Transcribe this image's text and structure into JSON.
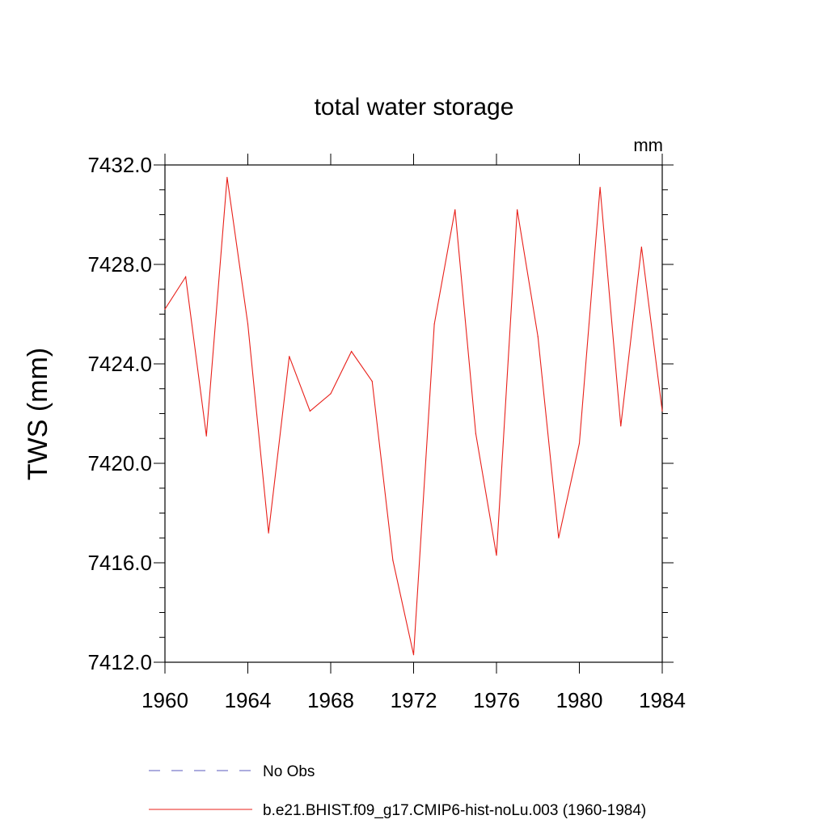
{
  "chart_data": {
    "type": "line",
    "title": "total water storage",
    "units": "mm",
    "xlabel": "",
    "ylabel": "TWS  (mm)",
    "xlim": [
      1960,
      1984
    ],
    "ylim": [
      7412,
      7432
    ],
    "x_ticks": [
      1960,
      1964,
      1968,
      1972,
      1976,
      1980,
      1984
    ],
    "x_tick_labels": [
      "1960",
      "1964",
      "1968",
      "1972",
      "1976",
      "1980",
      "1984"
    ],
    "y_ticks": [
      7412,
      7416,
      7420,
      7424,
      7428,
      7432
    ],
    "y_tick_labels": [
      "7412.0",
      "7416.0",
      "7420.0",
      "7424.0",
      "7428.0",
      "7432.0"
    ],
    "grid": false,
    "legend_position": "bottom",
    "legend": [
      {
        "label": "No Obs",
        "color": "#7b7bc9",
        "style": "dashed"
      },
      {
        "label": "b.e21.BHIST.f09_g17.CMIP6-hist-noLu.003 (1960-1984)",
        "color": "#e8201a",
        "style": "solid"
      }
    ],
    "x": [
      1960,
      1961,
      1962,
      1963,
      1964,
      1965,
      1966,
      1967,
      1968,
      1969,
      1970,
      1971,
      1972,
      1973,
      1974,
      1975,
      1976,
      1977,
      1978,
      1979,
      1980,
      1981,
      1982,
      1983,
      1984
    ],
    "series": [
      {
        "name": "b.e21.BHIST.f09_g17.CMIP6-hist-noLu.003 (1960-1984)",
        "color": "#e8201a",
        "values": [
          7426.2,
          7427.5,
          7421.1,
          7431.5,
          7425.6,
          7417.2,
          7424.3,
          7422.1,
          7422.8,
          7424.5,
          7423.3,
          7416.1,
          7412.3,
          7425.6,
          7430.2,
          7421.2,
          7416.3,
          7430.2,
          7425.1,
          7417.0,
          7420.8,
          7431.1,
          7421.5,
          7428.7,
          7422.1
        ]
      }
    ]
  }
}
